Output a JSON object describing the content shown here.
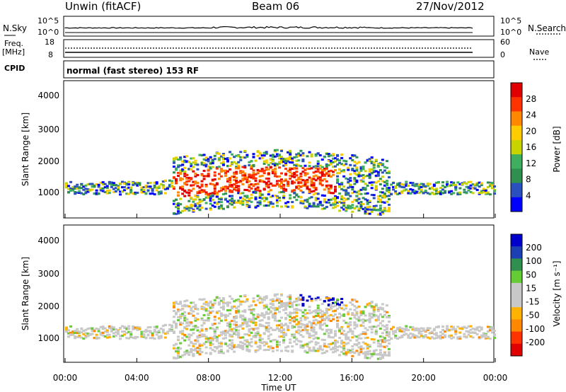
{
  "header": {
    "station": "Unwin (fitACF)",
    "beam": "Beam 06",
    "date": "27/Nov/2012"
  },
  "side_labels": {
    "nsky": "N.Sky",
    "freq": "Freq.",
    "mhz": "[MHz]",
    "cpid": "CPID",
    "nsearch": "N.Search",
    "nave": "Nave"
  },
  "cpid_text": "normal (fast stereo) 153 RF",
  "colors": {
    "power_scale": [
      "#0000ff",
      "#2a4fbf",
      "#2f8f4f",
      "#3fae5f",
      "#c8d400",
      "#ffcc00",
      "#ff8800",
      "#ff3300",
      "#e00000"
    ],
    "velocity_scale": [
      "#e00000",
      "#ff3300",
      "#ff8800",
      "#ffb300",
      "#c8c8c8",
      "#c8c8c8",
      "#66cc33",
      "#2f8f4f",
      "#1c3fb3",
      "#0000cc"
    ],
    "ground_scatter": "#c0c0c0"
  },
  "chart_data": [
    {
      "type": "line",
      "title": "N.Sky / N.Search",
      "y_left_ticks": [
        "10^5",
        "10^0"
      ],
      "y_right_ticks": [
        "10^5",
        "10^0"
      ],
      "series": [
        {
          "name": "N.Sky",
          "values": []
        },
        {
          "name": "N.Search",
          "values": []
        }
      ]
    },
    {
      "type": "line",
      "title": "Freq. / Nave",
      "y_left_ticks": [
        "18",
        "8"
      ],
      "y_right_ticks": [
        "60",
        "0"
      ],
      "series": [
        {
          "name": "Freq. [MHz]",
          "values": []
        },
        {
          "name": "Nave",
          "values": []
        }
      ]
    },
    {
      "type": "heatmap",
      "ylabel": "Slant Range [km]",
      "yticks": [
        "4000",
        "3000",
        "2000",
        "1000"
      ],
      "ylim": [
        180,
        4500
      ],
      "xlim": [
        0,
        24
      ],
      "colorbar_label": "Power [dB]",
      "colorbar_ticks": [
        "28",
        "24",
        "20",
        "16",
        "12",
        "8",
        "4"
      ],
      "colorbar_range": [
        0,
        30
      ]
    },
    {
      "type": "heatmap",
      "ylabel": "Slant Range [km]",
      "yticks": [
        "4000",
        "3000",
        "2000",
        "1000"
      ],
      "ylim": [
        180,
        4500
      ],
      "xlim": [
        0,
        24
      ],
      "colorbar_label": "Velocity [m s⁻¹]",
      "colorbar_ticks": [
        "200",
        "100",
        "50",
        "15",
        "-15",
        "-50",
        "-100",
        "-200"
      ],
      "colorbar_range": [
        -250,
        250
      ]
    }
  ],
  "x_axis": {
    "label": "Time UT",
    "ticks": [
      "00:00",
      "04:00",
      "08:00",
      "12:00",
      "16:00",
      "20:00",
      "00:00"
    ],
    "tick_hours": [
      0,
      4,
      8,
      12,
      16,
      20,
      24
    ]
  }
}
